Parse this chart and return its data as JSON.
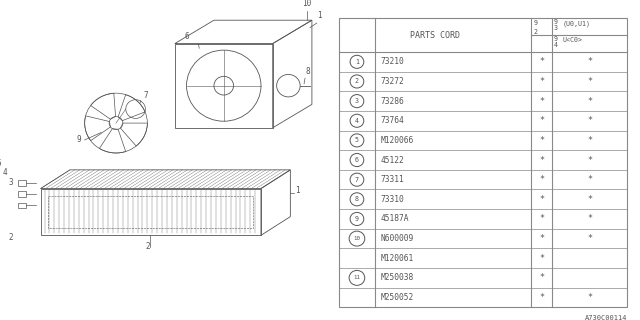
{
  "bg_color": "#ffffff",
  "line_color": "#888888",
  "text_color": "#555555",
  "footer_code": "A730C00114",
  "parts_cord_label": "PARTS CORD",
  "header_col1_top": "9",
  "header_col1_mid": "2",
  "header_col2a_top": "9",
  "header_col2a_mid": "3",
  "header_col2a_label": "(U0,U1)",
  "header_col2b_top": "9",
  "header_col2b_mid": "4",
  "header_col2b_label": "U<C0>",
  "rows": [
    {
      "num": "1",
      "part": "73210",
      "c1": "*",
      "c2": "*"
    },
    {
      "num": "2",
      "part": "73272",
      "c1": "*",
      "c2": "*"
    },
    {
      "num": "3",
      "part": "73286",
      "c1": "*",
      "c2": "*"
    },
    {
      "num": "4",
      "part": "73764",
      "c1": "*",
      "c2": "*"
    },
    {
      "num": "5",
      "part": "M120066",
      "c1": "*",
      "c2": "*"
    },
    {
      "num": "6",
      "part": "45122",
      "c1": "*",
      "c2": "*"
    },
    {
      "num": "7",
      "part": "73311",
      "c1": "*",
      "c2": "*"
    },
    {
      "num": "8",
      "part": "73310",
      "c1": "*",
      "c2": "*"
    },
    {
      "num": "9",
      "part": "45187A",
      "c1": "*",
      "c2": "*"
    },
    {
      "num": "10",
      "part": "N600009",
      "c1": "*",
      "c2": "*"
    },
    {
      "num": "",
      "part": "M120061",
      "c1": "*",
      "c2": ""
    },
    {
      "num": "11",
      "part": "M250038",
      "c1": "*",
      "c2": ""
    },
    {
      "num": "",
      "part": "M250052",
      "c1": "*",
      "c2": "*"
    }
  ],
  "font_size": 6.0,
  "small_font_size": 4.8
}
